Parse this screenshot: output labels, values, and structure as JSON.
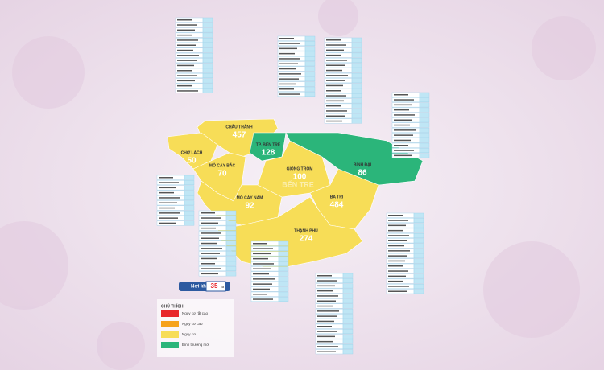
{
  "map_label": "BẾN TRE",
  "districts": [
    {
      "name": "CHÂU THÀNH",
      "cases": 457,
      "level": 2
    },
    {
      "name": "TP. BẾN TRE",
      "cases": 128,
      "level": 3
    },
    {
      "name": "CHỢ LÁCH",
      "cases": 50,
      "level": 2
    },
    {
      "name": "MỎ CÀY BẮC",
      "cases": 70,
      "level": 2
    },
    {
      "name": "GIỒNG TRÔM",
      "cases": 100,
      "level": 2
    },
    {
      "name": "BÌNH ĐẠI",
      "cases": 86,
      "level": 3
    },
    {
      "name": "MỎ CÀY NAM",
      "cases": 92,
      "level": 2
    },
    {
      "name": "BA TRI",
      "cases": 484,
      "level": 2
    },
    {
      "name": "THẠNH PHÚ",
      "cases": 274,
      "level": 2
    }
  ],
  "other_sources": {
    "label": "Nơi khác về",
    "cases": 35,
    "unit": "ca"
  },
  "legend": {
    "title": "CHÚ THÍCH",
    "levels": [
      {
        "label": "Nguy cơ rất cao",
        "color": "#e8262a"
      },
      {
        "label": "Nguy cơ cao",
        "color": "#f6a21c"
      },
      {
        "label": "Nguy cơ",
        "color": "#f7dd57"
      },
      {
        "label": "Bình thường mới",
        "color": "#2bb57a"
      }
    ]
  }
}
